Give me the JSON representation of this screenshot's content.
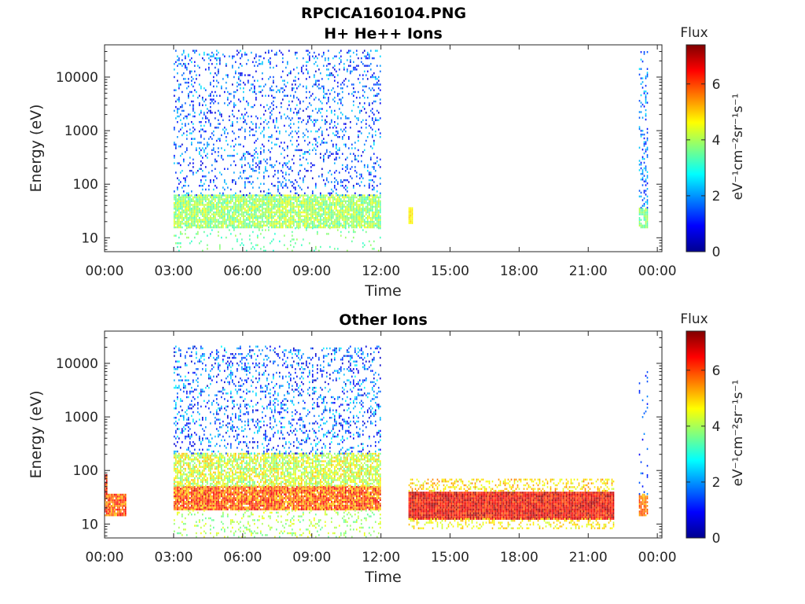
{
  "figure": {
    "title": "RPCICA160104.PNG"
  },
  "colorbar": {
    "label": "Flux",
    "unit_label": "eV⁻¹cm⁻²sr⁻¹s⁻¹",
    "ticks": [
      "0",
      "2",
      "4",
      "6"
    ],
    "range": [
      0,
      7.4
    ],
    "colormap": "jet"
  },
  "chart_data": [
    {
      "type": "heatmap",
      "title": "H+ He++ Ions",
      "xlabel": "Time",
      "ylabel": "Energy (eV)",
      "x_unit": "hours of day",
      "xlim": [
        0,
        24.2
      ],
      "y_scale": "log",
      "ylim": [
        5.5,
        40000
      ],
      "x_ticks": [
        "00:00",
        "03:00",
        "06:00",
        "09:00",
        "12:00",
        "15:00",
        "18:00",
        "21:00",
        "00:00"
      ],
      "y_ticks": [
        "10",
        "100",
        "1000",
        "10000"
      ],
      "regions": [
        {
          "x": [
            3.0,
            12.0
          ],
          "energy": [
            15,
            60
          ],
          "flux": [
            3.2,
            4.6
          ],
          "density": 0.85
        },
        {
          "x": [
            3.0,
            12.0
          ],
          "energy": [
            60,
            30000
          ],
          "flux": [
            0.5,
            2.6
          ],
          "density": 0.16
        },
        {
          "x": [
            3.0,
            12.0
          ],
          "energy": [
            5.5,
            15
          ],
          "flux": [
            3.0,
            4.0
          ],
          "density": 0.08
        },
        {
          "x": [
            13.2,
            13.35
          ],
          "energy": [
            18,
            35
          ],
          "flux": [
            4.5,
            5.0
          ],
          "density": 0.9
        },
        {
          "x": [
            23.2,
            23.6
          ],
          "energy": [
            15,
            35
          ],
          "flux": [
            3.2,
            4.2
          ],
          "density": 0.8
        },
        {
          "x": [
            23.2,
            23.6
          ],
          "energy": [
            35,
            30000
          ],
          "flux": [
            1.0,
            2.6
          ],
          "density": 0.25
        }
      ]
    },
    {
      "type": "heatmap",
      "title": "Other Ions",
      "xlabel": "Time",
      "ylabel": "Energy (eV)",
      "x_unit": "hours of day",
      "xlim": [
        0,
        24.2
      ],
      "y_scale": "log",
      "ylim": [
        5.5,
        40000
      ],
      "x_ticks": [
        "00:00",
        "03:00",
        "06:00",
        "09:00",
        "12:00",
        "15:00",
        "18:00",
        "21:00",
        "00:00"
      ],
      "y_ticks": [
        "10",
        "100",
        "1000",
        "10000"
      ],
      "regions": [
        {
          "x": [
            0.0,
            0.9
          ],
          "energy": [
            14,
            35
          ],
          "flux": [
            5.0,
            6.6
          ],
          "density": 0.95
        },
        {
          "x": [
            0.0,
            0.1
          ],
          "energy": [
            35,
            80
          ],
          "flux": [
            5.5,
            7.2
          ],
          "density": 0.95
        },
        {
          "x": [
            3.0,
            12.0
          ],
          "energy": [
            18,
            50
          ],
          "flux": [
            4.8,
            6.8
          ],
          "density": 0.95
        },
        {
          "x": [
            3.0,
            12.0
          ],
          "energy": [
            50,
            200
          ],
          "flux": [
            3.4,
            5.2
          ],
          "density": 0.7
        },
        {
          "x": [
            3.0,
            12.0
          ],
          "energy": [
            200,
            20000
          ],
          "flux": [
            0.4,
            2.8
          ],
          "density": 0.2
        },
        {
          "x": [
            3.0,
            12.0
          ],
          "energy": [
            5.5,
            18
          ],
          "flux": [
            3.4,
            4.6
          ],
          "density": 0.15
        },
        {
          "x": [
            13.2,
            22.1
          ],
          "energy": [
            12,
            40
          ],
          "flux": [
            5.8,
            7.3
          ],
          "density": 1.0
        },
        {
          "x": [
            13.2,
            22.1
          ],
          "energy": [
            40,
            70
          ],
          "flux": [
            4.2,
            5.6
          ],
          "density": 0.35
        },
        {
          "x": [
            13.2,
            22.1
          ],
          "energy": [
            8,
            12
          ],
          "flux": [
            4.2,
            5.2
          ],
          "density": 0.3
        },
        {
          "x": [
            23.2,
            23.6
          ],
          "energy": [
            14,
            35
          ],
          "flux": [
            5.0,
            6.2
          ],
          "density": 0.8
        },
        {
          "x": [
            23.2,
            23.6
          ],
          "energy": [
            35,
            8000
          ],
          "flux": [
            0.8,
            2.0
          ],
          "density": 0.05
        }
      ]
    }
  ]
}
